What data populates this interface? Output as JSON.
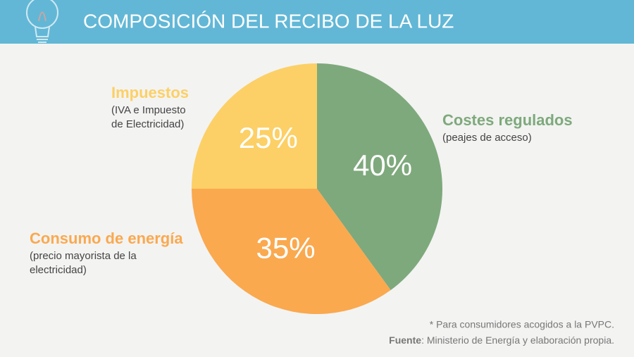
{
  "chart_data": {
    "type": "pie",
    "title": "COMPOSICIÓN DEL RECIBO DE LA LUZ",
    "categories": [
      "Costes regulados",
      "Consumo de energía",
      "Impuestos"
    ],
    "descriptions": [
      [
        "(peajes de acceso)"
      ],
      [
        "(precio mayorista de la",
        "electricidad)"
      ],
      [
        "(IVA e Impuesto",
        "de Electricidad)"
      ]
    ],
    "values": [
      40,
      35,
      25
    ],
    "value_labels": [
      "40%",
      "35%",
      "25%"
    ],
    "colors": [
      "#7ea97c",
      "#faa94f",
      "#fcd066"
    ],
    "footnote": "* Para consumidores acogidos a la PVPC.",
    "source_label": "Fuente",
    "source": ": Ministerio de Energía y elaboración propia."
  }
}
